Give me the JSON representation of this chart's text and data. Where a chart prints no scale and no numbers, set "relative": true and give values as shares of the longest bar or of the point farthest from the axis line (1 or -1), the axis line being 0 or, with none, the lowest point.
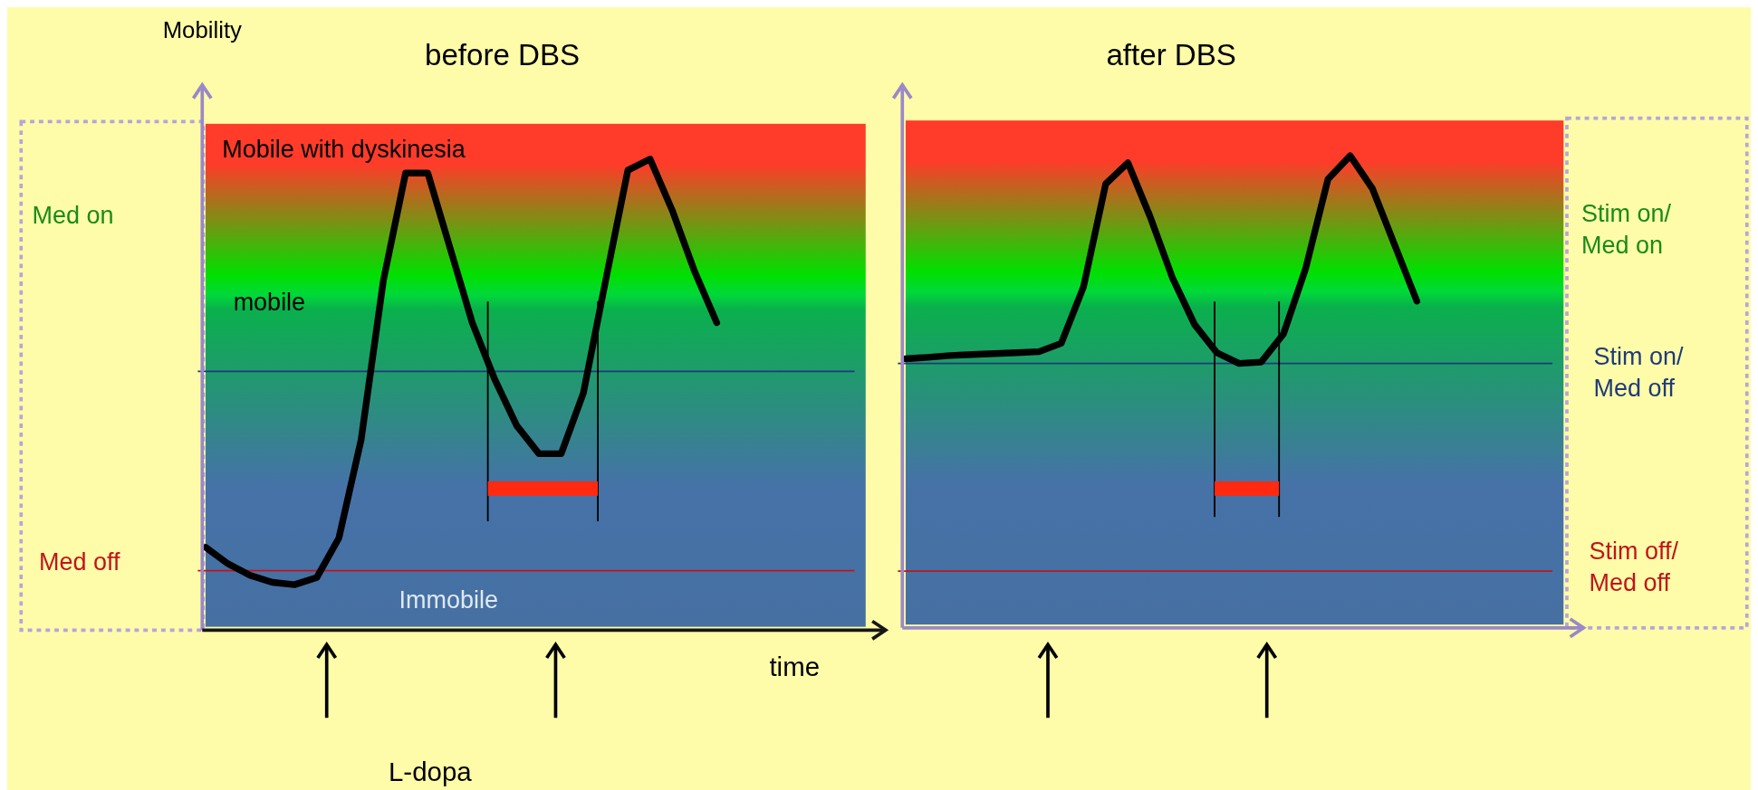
{
  "chart_data": [
    {
      "type": "line",
      "title": "before DBS",
      "ylabel": "Mobility",
      "xlabel": "time",
      "relative": true,
      "categories": [
        null,
        null,
        null,
        null,
        null,
        null,
        null,
        null,
        null,
        null,
        null,
        null,
        null,
        null,
        null,
        null,
        null,
        null,
        null,
        null,
        null,
        null,
        null,
        null
      ],
      "series": [
        {
          "color": "#000000",
          "values": [
            0.17,
            0.135,
            0.11,
            0.095,
            0.09,
            0.105,
            0.19,
            0.4,
            0.74,
            0.97,
            0.97,
            0.81,
            0.65,
            0.53,
            0.43,
            0.37,
            0.37,
            0.5,
            0.74,
            0.976,
            1.0,
            0.89,
            0.76,
            0.65
          ]
        }
      ],
      "ref_lines": [
        {
          "axis": "y",
          "value": 0.546,
          "label": null,
          "color": "#1f3a7a"
        },
        {
          "axis": "y",
          "value": 0.12,
          "label": "Med off",
          "color": "#c0141c"
        }
      ],
      "annotations": [
        "Mobile with dyskinesia",
        "mobile",
        "Immobile",
        "Med on",
        "L-dopa"
      ]
    },
    {
      "type": "line",
      "title": "after DBS",
      "relative": true,
      "categories": [
        null,
        null,
        null,
        null,
        null,
        null,
        null,
        null,
        null,
        null,
        null,
        null,
        null,
        null,
        null,
        null,
        null,
        null,
        null,
        null,
        null,
        null,
        null,
        null
      ],
      "series": [
        {
          "color": "#000000",
          "values": [
            0.567,
            0.57,
            0.574,
            0.576,
            0.578,
            0.58,
            0.582,
            0.6,
            0.72,
            0.94,
            0.985,
            0.87,
            0.74,
            0.64,
            0.58,
            0.557,
            0.56,
            0.62,
            0.76,
            0.95,
            1.0,
            0.93,
            0.81,
            0.69
          ]
        }
      ],
      "ref_lines": [
        {
          "axis": "y",
          "value": 0.557,
          "label": "Stim on/ Med off",
          "color": "#1f3a7a"
        },
        {
          "axis": "y",
          "value": 0.114,
          "label": "Stim off/ Med off",
          "color": "#c0141c"
        }
      ],
      "annotations": [
        "Stim on/ Med on"
      ]
    }
  ]
}
